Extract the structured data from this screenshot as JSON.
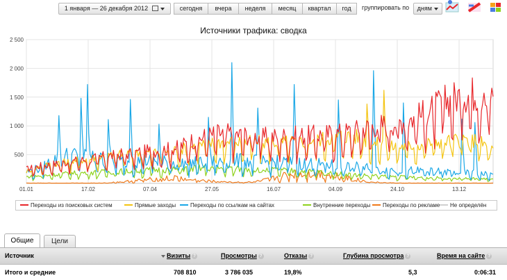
{
  "toolbar": {
    "date_range": "1 января — 26 декабря 2012",
    "calendar_icon": "calendar-icon",
    "presets": [
      "сегодня",
      "вчера",
      "неделя",
      "месяц",
      "квартал",
      "год"
    ],
    "group_label": "группировать по",
    "group_value": "дням",
    "icons": [
      "chart-type-icon",
      "chart-type-icon",
      "export-icon"
    ]
  },
  "chart_data": {
    "type": "line",
    "title": "Источники трафика: сводка",
    "x_ticks": [
      "01.01",
      "17.02",
      "07.04",
      "27.05",
      "16.07",
      "04.09",
      "24.10",
      "13.12"
    ],
    "x_range": [
      "01.01",
      "26.12"
    ],
    "y_ticks": [
      "500",
      "1 000",
      "1 500",
      "2 000",
      "2 500"
    ],
    "ylim": [
      0,
      2500
    ],
    "grid": true,
    "legend_position": "bottom",
    "series": [
      {
        "name": "Переходы из поисковых систем",
        "color": "#e8262a",
        "values": [
          240,
          300,
          330,
          370,
          400,
          440,
          480,
          510,
          540,
          560,
          600,
          720,
          800,
          850,
          830,
          800,
          780,
          790,
          800,
          810,
          830,
          850,
          900,
          960,
          1000,
          1050,
          1120,
          1250,
          1400,
          1500,
          1520,
          1380
        ]
      },
      {
        "name": "Прямые заходы",
        "color": "#f4c411",
        "values": [
          200,
          290,
          340,
          370,
          410,
          450,
          480,
          500,
          520,
          540,
          560,
          620,
          660,
          700,
          700,
          690,
          690,
          690,
          700,
          720,
          760,
          800,
          780,
          680,
          620,
          620,
          640,
          690,
          720,
          740,
          720,
          560
        ]
      },
      {
        "name": "Переходы по ссылкам на сайтах",
        "color": "#1aa7e6",
        "values": [
          190,
          260,
          420,
          480,
          440,
          400,
          370,
          380,
          380,
          360,
          340,
          340,
          350,
          360,
          380,
          370,
          360,
          350,
          340,
          330,
          310,
          290,
          270,
          250,
          230,
          220,
          210,
          200,
          190,
          180,
          170,
          140
        ]
      },
      {
        "name": "Внутренние переходы",
        "color": "#8ed21d",
        "values": [
          110,
          130,
          150,
          170,
          180,
          190,
          200,
          210,
          220,
          230,
          240,
          250,
          260,
          260,
          250,
          240,
          230,
          220,
          210,
          200,
          180,
          160,
          140,
          130,
          120,
          110,
          100,
          95,
          90,
          85,
          80,
          70
        ]
      },
      {
        "name": "Переходы по рекламе",
        "color": "#f07a1a",
        "values": [
          5,
          5,
          5,
          5,
          5,
          5,
          20,
          40,
          60,
          80,
          90,
          60,
          40,
          30,
          20,
          20,
          60,
          120,
          160,
          180,
          150,
          110,
          60,
          20,
          10,
          5,
          5,
          5,
          5,
          5,
          5,
          5
        ]
      },
      {
        "name": "Не определён",
        "color": "#cfcfcf",
        "values": [
          2,
          2,
          2,
          2,
          2,
          2,
          2,
          2,
          2,
          2,
          2,
          2,
          2,
          2,
          2,
          2,
          2,
          2,
          2,
          2,
          2,
          2,
          2,
          2,
          2,
          2,
          2,
          2,
          2,
          2,
          2,
          2
        ]
      }
    ]
  },
  "tabs": [
    {
      "label": "Общие",
      "active": true
    },
    {
      "label": "Цели",
      "active": false
    }
  ],
  "table": {
    "columns": [
      "Источник",
      "Визиты",
      "Просмотры",
      "Отказы",
      "Глубина просмотра",
      "Время на сайте"
    ],
    "help_icon": "help-icon",
    "sort_icon": "sort-desc-icon",
    "total_row": {
      "label": "Итого и средние",
      "values": [
        "708 810",
        "3 786 035",
        "19,8%",
        "5,3",
        "0:06:31"
      ]
    }
  }
}
